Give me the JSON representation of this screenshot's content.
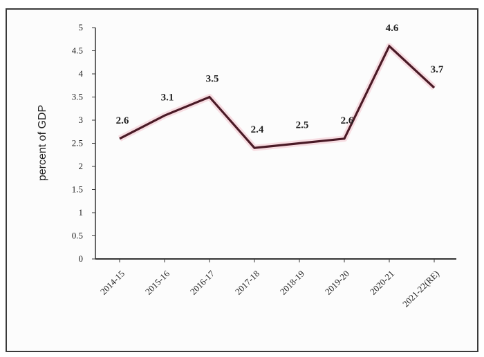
{
  "chart_data": {
    "type": "line",
    "title": "",
    "xlabel": "",
    "ylabel": "percent of GDP",
    "categories": [
      "2014-15",
      "2015-16",
      "2016-17",
      "2017-18",
      "2018-19",
      "2019-20",
      "2020-21",
      "2021-22(RE)"
    ],
    "series": [
      {
        "values": [
          2.6,
          3.1,
          3.5,
          2.4,
          2.5,
          2.6,
          4.6,
          3.7
        ],
        "color": "#4a1a26"
      }
    ],
    "data_labels": [
      "2.6",
      "3.1",
      "3.5",
      "2.4",
      "2.5",
      "2.6",
      "4.6",
      "3.7"
    ],
    "ylim": [
      0,
      5
    ],
    "yticks": [
      "0",
      "0.5",
      "1",
      "1.5",
      "2",
      "2.5",
      "3",
      "3.5",
      "4",
      "4.5",
      "5"
    ],
    "grid": false,
    "legend": "none"
  }
}
